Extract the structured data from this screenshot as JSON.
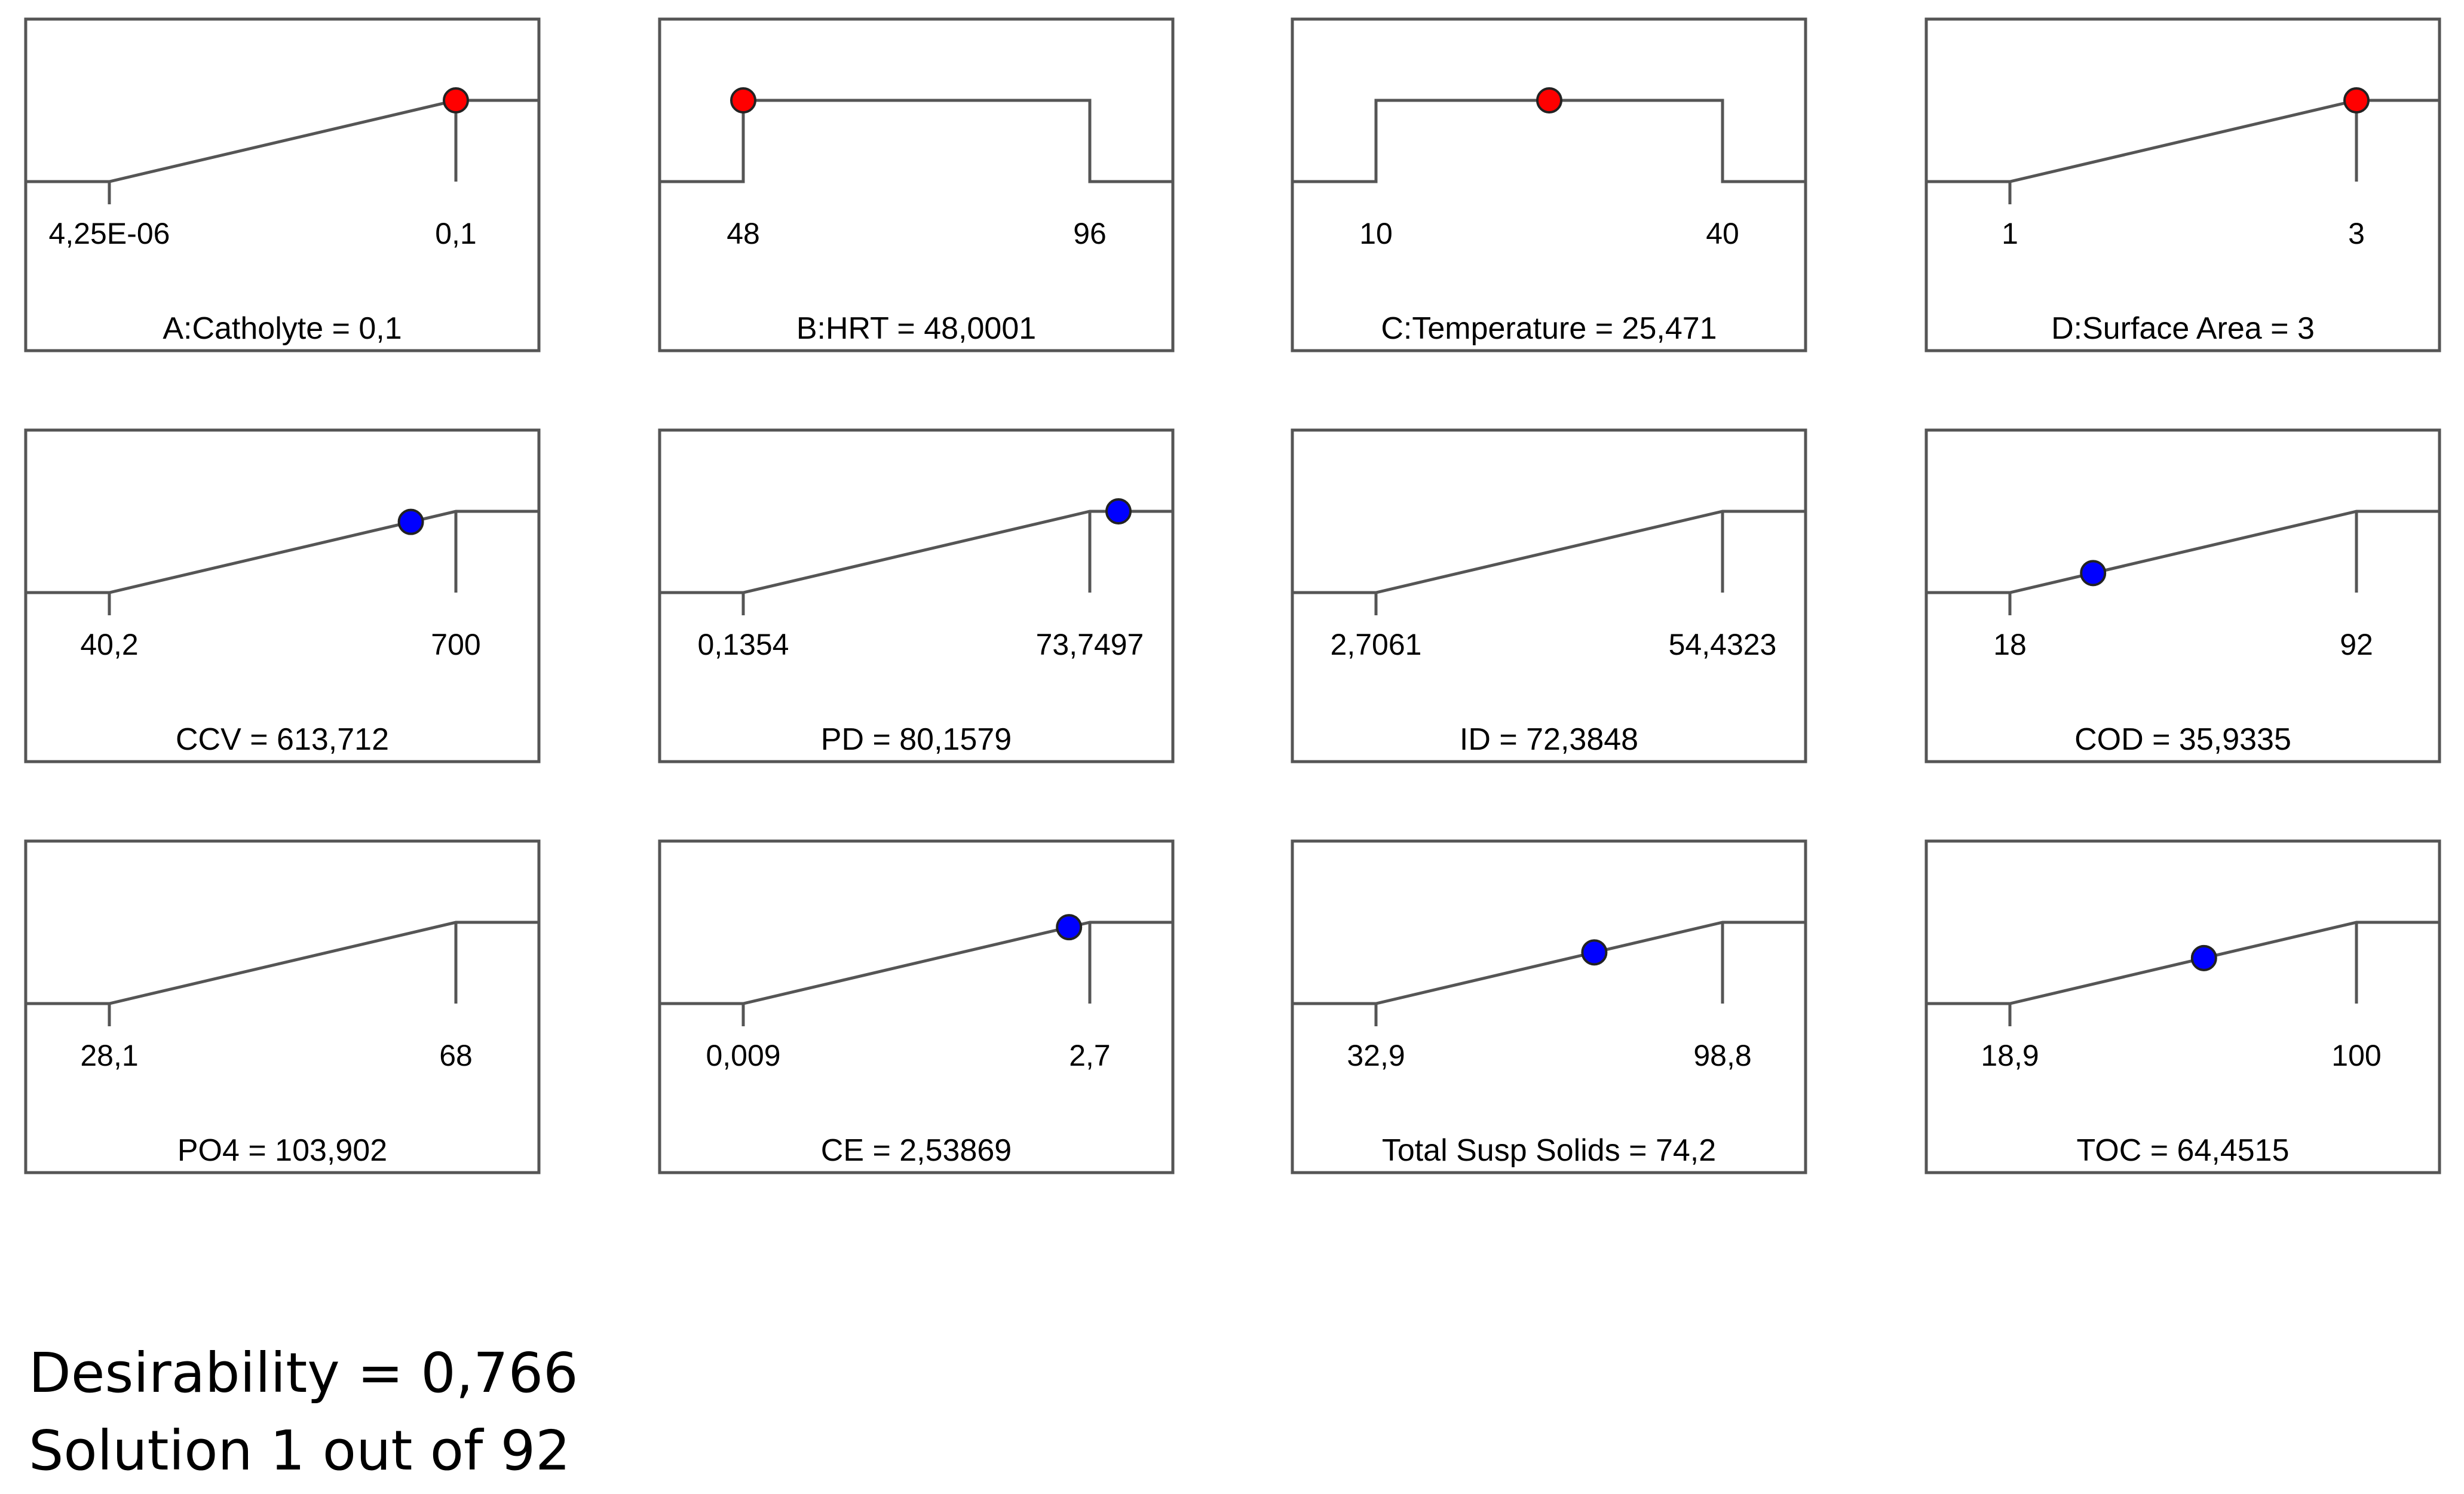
{
  "chart_data": [
    {
      "type": "ramp",
      "title": "A:Catholyte = 0,1",
      "tick_labels": [
        "4,25E-06",
        "0,1"
      ],
      "shape": "increasing",
      "marker_level": 1.0,
      "marker_color": "#ff0000"
    },
    {
      "type": "ramp",
      "title": "B:HRT = 48,0001",
      "tick_labels": [
        "48",
        "96"
      ],
      "shape": "range",
      "marker_level": 1.0,
      "marker_color": "#ff0000"
    },
    {
      "type": "ramp",
      "title": "C:Temperature = 25,471",
      "tick_labels": [
        "10",
        "40"
      ],
      "shape": "range",
      "marker_level": 1.0,
      "marker_color": "#ff0000"
    },
    {
      "type": "ramp",
      "title": "D:Surface Area = 3",
      "tick_labels": [
        "1",
        "3"
      ],
      "shape": "increasing",
      "marker_level": 1.0,
      "marker_color": "#ff0000"
    },
    {
      "type": "ramp",
      "title": "CCV = 613,712",
      "tick_labels": [
        "40,2",
        "700"
      ],
      "shape": "increasing",
      "marker_level": 0.87,
      "marker_color": "#0000ff"
    },
    {
      "type": "ramp",
      "title": "PD = 80,1579",
      "tick_labels": [
        "0,1354",
        "73,7497"
      ],
      "shape": "increasing",
      "marker_level": 1.0,
      "marker_color": "#0000ff"
    },
    {
      "type": "ramp",
      "title": "ID = 72,3848",
      "tick_labels": [
        "2,7061",
        "54,4323"
      ],
      "shape": "increasing",
      "marker_level": null,
      "marker_color": ""
    },
    {
      "type": "ramp",
      "title": "COD = 35,9335",
      "tick_labels": [
        "18",
        "92"
      ],
      "shape": "increasing",
      "marker_level": 0.24,
      "marker_color": "#0000ff"
    },
    {
      "type": "ramp",
      "title": "PO4 = 103,902",
      "tick_labels": [
        "28,1",
        "68"
      ],
      "shape": "increasing",
      "marker_level": null,
      "marker_color": ""
    },
    {
      "type": "ramp",
      "title": "CE = 2,53869",
      "tick_labels": [
        "0,009",
        "2,7"
      ],
      "shape": "increasing",
      "marker_level": 0.94,
      "marker_color": "#0000ff"
    },
    {
      "type": "ramp",
      "title": "Total Susp Solids = 74,2",
      "tick_labels": [
        "32,9",
        "98,8"
      ],
      "shape": "increasing",
      "marker_level": 0.63,
      "marker_color": "#0000ff"
    },
    {
      "type": "ramp",
      "title": "TOC = 64,4515",
      "tick_labels": [
        "18,9",
        "100"
      ],
      "shape": "increasing",
      "marker_level": 0.56,
      "marker_color": "#0000ff"
    }
  ],
  "summary": {
    "desirability": "Desirability = 0,766",
    "solution": "Solution 1 out of 92"
  }
}
